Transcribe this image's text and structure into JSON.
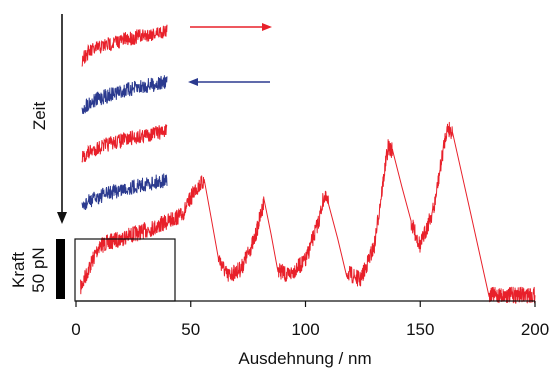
{
  "chart_data": {
    "type": "line",
    "xlabel": "Ausdehnung / nm",
    "ylabel": "Kraft",
    "time_label": "Zeit",
    "scale_bar_label": "50 pN",
    "scale_bar_value_pN": 50,
    "xlim": [
      0,
      200
    ],
    "x_ticks": [
      0,
      50,
      100,
      150,
      200
    ],
    "series": [
      {
        "color": "#e8202a",
        "points": [
          [
            2,
            6
          ],
          [
            10,
            28
          ],
          [
            20,
            32
          ],
          [
            35,
            38
          ],
          [
            42,
            42
          ],
          [
            46,
            44
          ],
          [
            48,
            48
          ],
          [
            52,
            58
          ],
          [
            56,
            62
          ],
          [
            62,
            22
          ],
          [
            66,
            12
          ],
          [
            72,
            16
          ],
          [
            78,
            32
          ],
          [
            82,
            52
          ],
          [
            88,
            16
          ],
          [
            92,
            12
          ],
          [
            100,
            20
          ],
          [
            106,
            42
          ],
          [
            108,
            54
          ],
          [
            110,
            50
          ],
          [
            118,
            14
          ],
          [
            124,
            10
          ],
          [
            130,
            28
          ],
          [
            135,
            72
          ],
          [
            136,
            80
          ],
          [
            138,
            78
          ],
          [
            146,
            40
          ],
          [
            150,
            28
          ],
          [
            156,
            48
          ],
          [
            161,
            86
          ],
          [
            162,
            90
          ],
          [
            164,
            88
          ],
          [
            180,
            2
          ],
          [
            200,
            2
          ]
        ]
      }
    ],
    "inset_traces": [
      {
        "color": "#e8202a",
        "direction": "right"
      },
      {
        "color": "#2b3a8f",
        "direction": "left"
      },
      {
        "color": "#e8202a",
        "direction": "right"
      },
      {
        "color": "#2b3a8f",
        "direction": "left"
      }
    ],
    "colors": {
      "pull": "#e8202a",
      "relax": "#2b3a8f",
      "axis": "#111111"
    }
  }
}
